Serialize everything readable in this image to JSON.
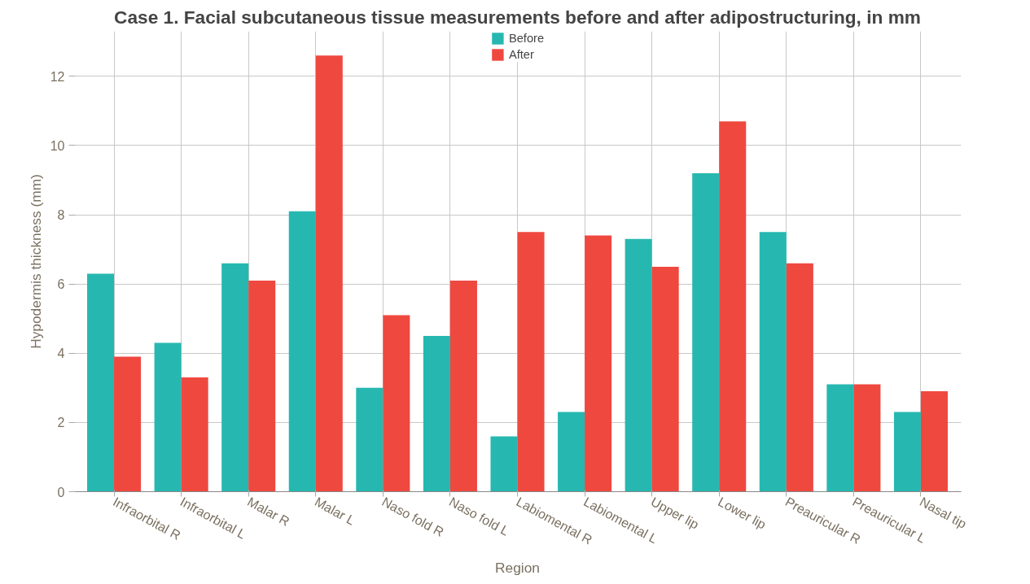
{
  "chart_data": {
    "type": "bar",
    "title": "Case 1. Facial subcutaneous tissue measurements before and after adipostructuring, in mm",
    "xlabel": "Region",
    "ylabel": "Hypodermis thickness (mm)",
    "categories": [
      "Infraorbital R",
      "Infraorbital L",
      "Malar R",
      "Malar L",
      "Naso fold R",
      "Naso fold L",
      "Labiomental R",
      "Labiomental L",
      "Upper lip",
      "Lower lip",
      "Preauricular R",
      "Preauricular L",
      "Nasal tip"
    ],
    "series": [
      {
        "name": "Before",
        "color": "#26b8b0",
        "values": [
          6.3,
          4.3,
          6.6,
          8.1,
          3.0,
          4.5,
          1.6,
          2.3,
          7.3,
          9.2,
          7.5,
          3.1,
          2.3
        ]
      },
      {
        "name": "After",
        "color": "#ef483f",
        "values": [
          3.9,
          3.3,
          6.1,
          12.6,
          5.1,
          6.1,
          7.5,
          7.4,
          6.5,
          10.7,
          6.6,
          3.1,
          2.9
        ]
      }
    ],
    "ylim": [
      0,
      13.3
    ],
    "yticks": [
      0,
      2,
      4,
      6,
      8,
      10,
      12
    ],
    "grid": true,
    "legend": "top"
  }
}
